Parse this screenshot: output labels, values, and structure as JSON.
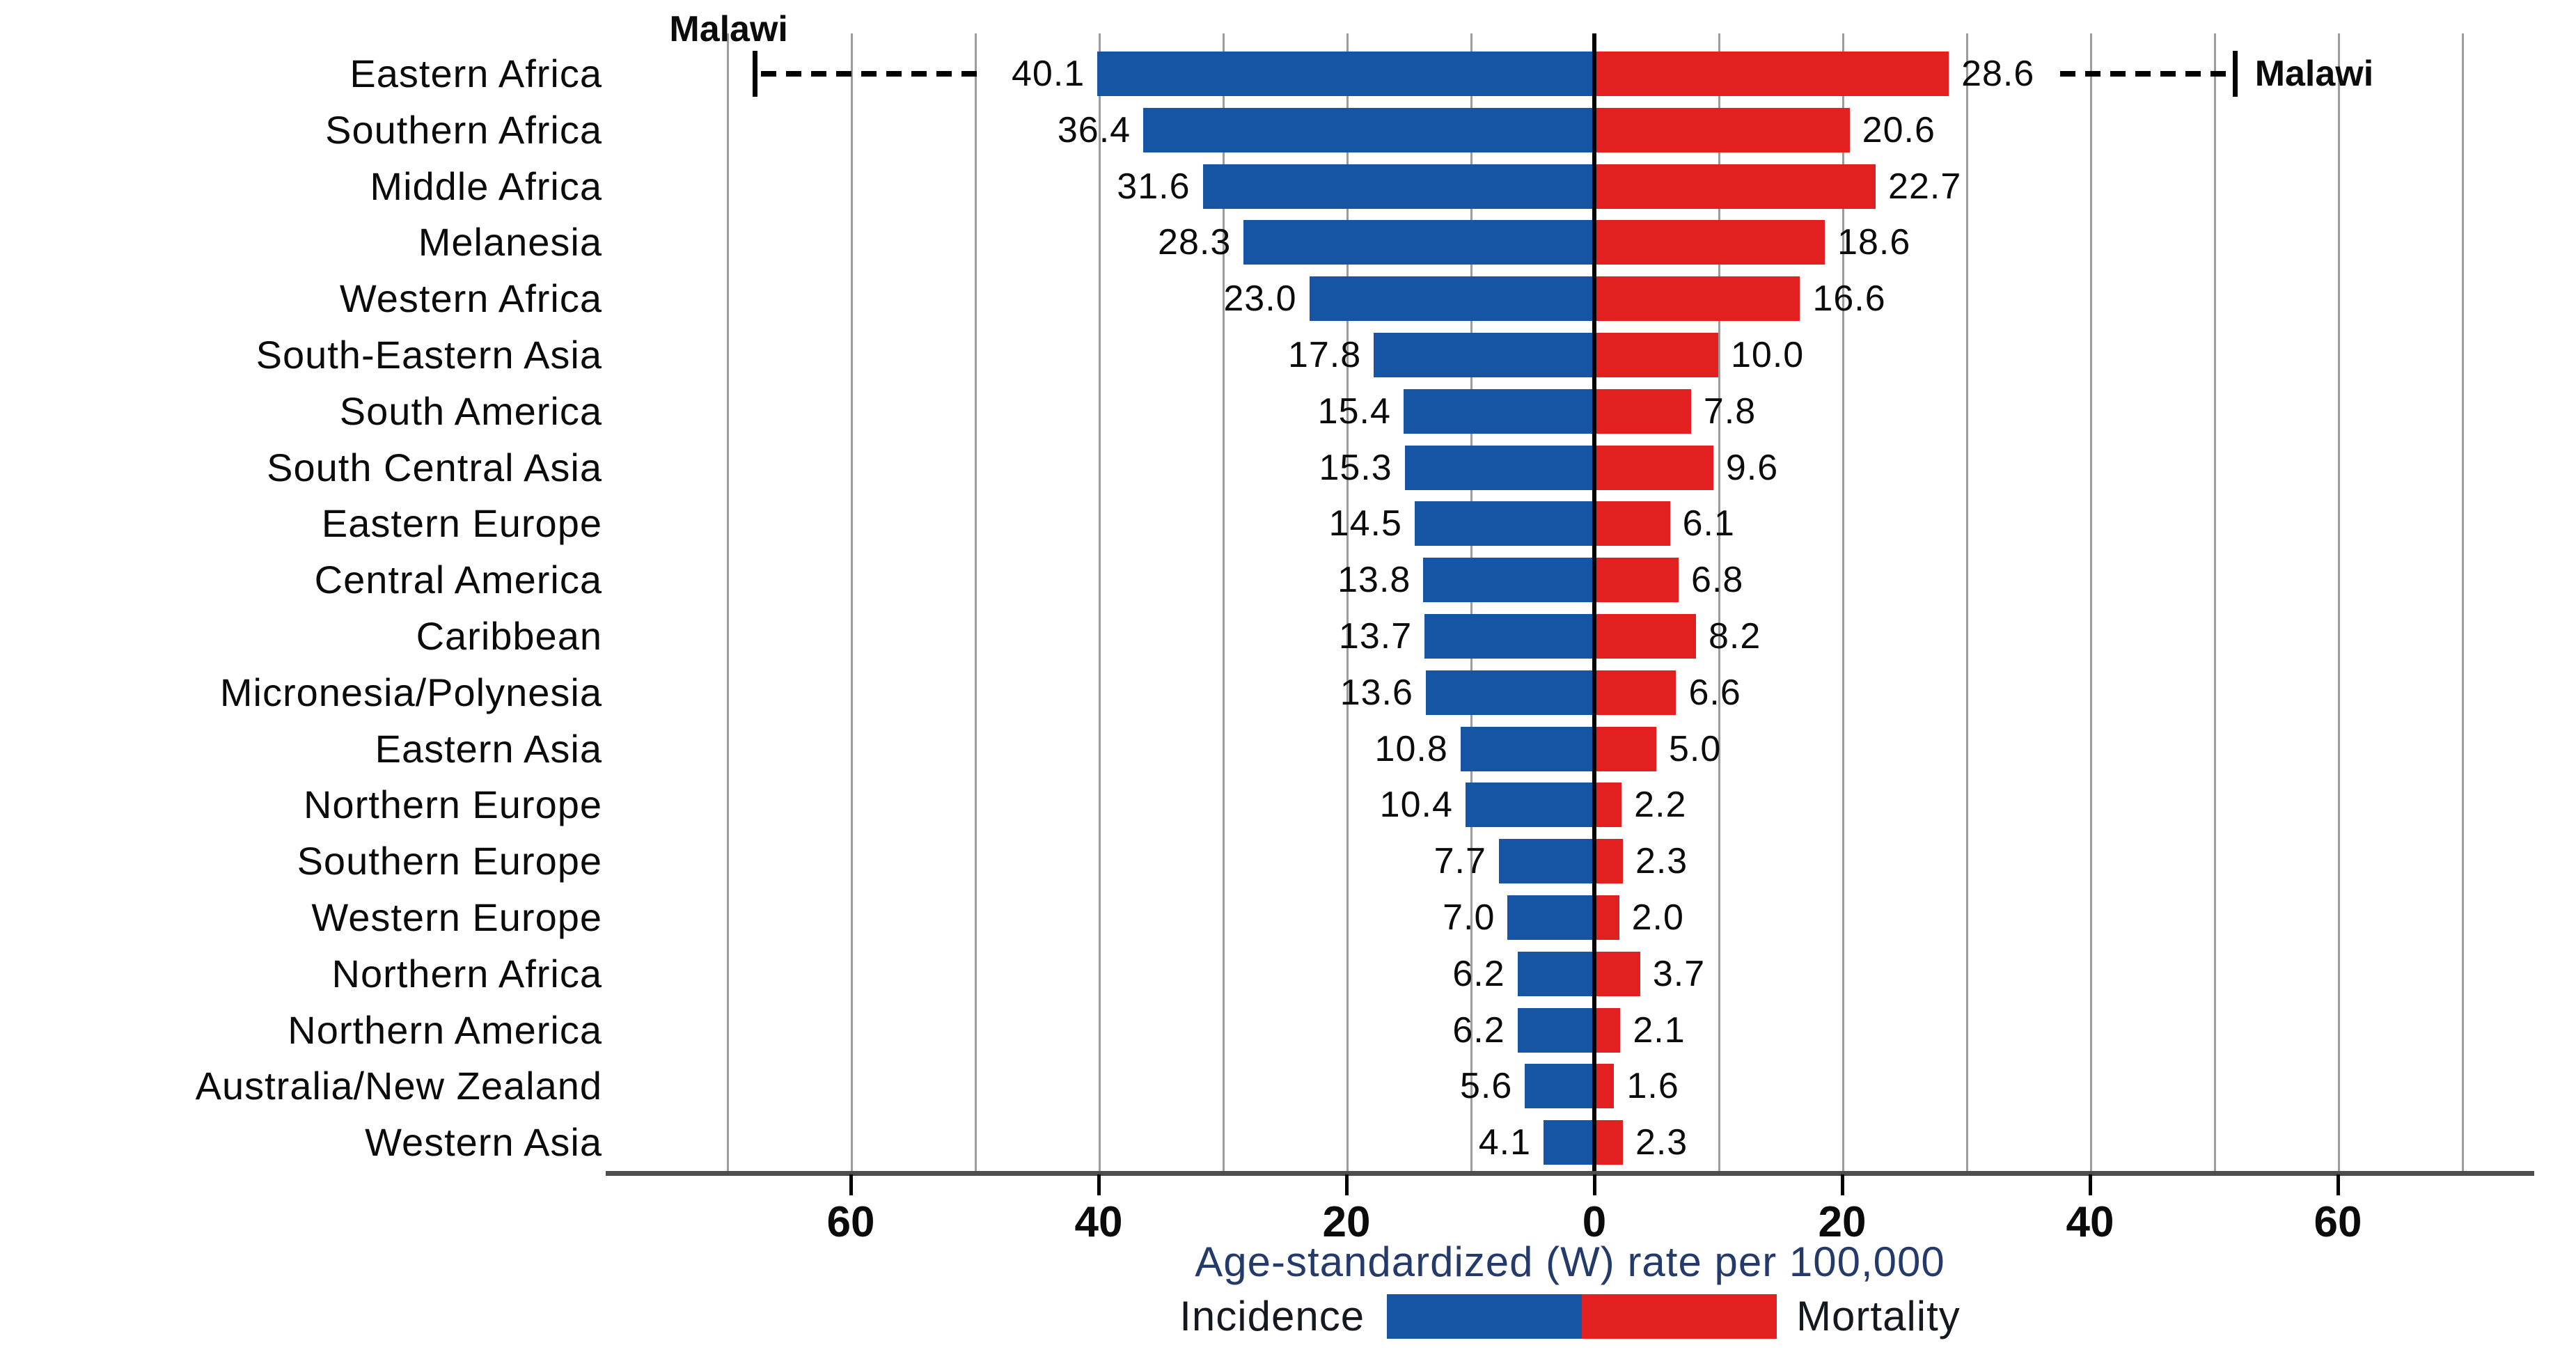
{
  "chart_data": {
    "type": "bar",
    "variant": "bidirectional-horizontal (tornado / pyramid style)",
    "title": "",
    "categories": [
      "Eastern Africa",
      "Southern Africa",
      "Middle Africa",
      "Melanesia",
      "Western Africa",
      "South-Eastern Asia",
      "South America",
      "South Central Asia",
      "Eastern Europe",
      "Central America",
      "Caribbean",
      "Micronesia/Polynesia",
      "Eastern Asia",
      "Northern Europe",
      "Southern Europe",
      "Western Europe",
      "Northern Africa",
      "Northern America",
      "Australia/New Zealand",
      "Western Asia"
    ],
    "series": [
      {
        "name": "Incidence",
        "side": "left",
        "color": "#1654a4",
        "values": [
          "40.1",
          "36.4",
          "31.6",
          "28.3",
          "23.0",
          "17.8",
          "15.4",
          "15.3",
          "14.5",
          "13.8",
          "13.7",
          "13.6",
          "10.8",
          "10.4",
          "7.7",
          "7.0",
          "6.2",
          "6.2",
          "5.6",
          "4.1"
        ]
      },
      {
        "name": "Mortality",
        "side": "right",
        "color": "#e2201f",
        "values": [
          "28.6",
          "20.6",
          "22.7",
          "18.6",
          "16.6",
          "10.0",
          "7.8",
          "9.6",
          "6.1",
          "6.8",
          "8.2",
          "6.6",
          "5.0",
          "2.2",
          "2.3",
          "2.0",
          "3.7",
          "2.1",
          "1.6",
          "2.3"
        ]
      }
    ],
    "xlabel": "Age-standardized (W) rate per 100,000",
    "x_tick_labels": [
      "60",
      "40",
      "20",
      "0",
      "20",
      "40",
      "60"
    ],
    "x_axis_range_each_side": 70,
    "gridline_step": 10,
    "grid": "vertical gray gridlines every 10 units",
    "legend": {
      "position": "bottom-center",
      "items": [
        "Incidence",
        "Mortality"
      ]
    },
    "annotations": [
      {
        "text": "Malawi",
        "series": "Incidence",
        "row": 0,
        "value": 67.9,
        "style": "dashed leader line with end cap",
        "label_position": "top-left above leader"
      },
      {
        "text": "Malawi",
        "series": "Mortality",
        "row": 0,
        "value": 51.5,
        "style": "dashed leader line with end cap",
        "label_position": "right of leader"
      }
    ],
    "colors": {
      "incidence_blue": "#1654a4",
      "mortality_red": "#e2201f",
      "gridline": "#9c9c9c",
      "axis_line": "#4d4d4d",
      "zero_line": "#000000",
      "label_text": "#0b0b0b",
      "axis_title_text": "#243a6b",
      "legend_text": "#15181f",
      "background": "#ffffff"
    }
  }
}
